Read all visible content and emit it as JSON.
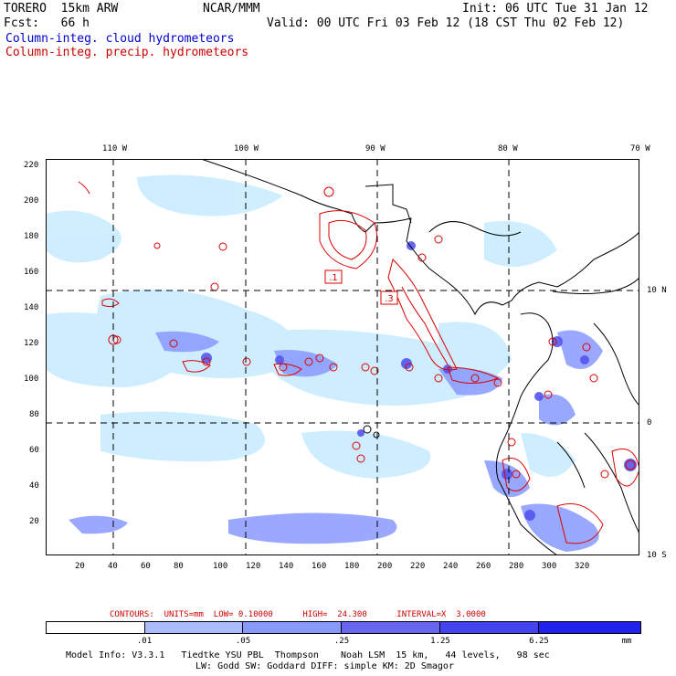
{
  "header": {
    "title_left": "TORERO  15km ARW",
    "org": "NCAR/MMM",
    "init": "Init: 06 UTC Tue 31 Jan 12",
    "fcst": "Fcst:   66 h",
    "valid": "Valid: 00 UTC Fri 03 Feb 12 (18 CST Thu 02 Feb 12)",
    "legend_cloud": "Column-integ. cloud hydrometeors",
    "legend_precip": "Column-integ. precip. hydrometeors"
  },
  "map": {
    "top_lon_labels": [
      "110 W",
      "100 W",
      "90 W",
      "80 W",
      "70 W"
    ],
    "right_lat_labels": [
      "10 N",
      "0",
      "10 S"
    ],
    "left_y_ticks": [
      "220",
      "200",
      "180",
      "160",
      "140",
      "120",
      "100",
      "80",
      "60",
      "40",
      "20"
    ],
    "bottom_x_ticks": [
      "20",
      "40",
      "60",
      "80",
      "100",
      "120",
      "140",
      "160",
      "180",
      "200",
      "220",
      "240",
      "260",
      "280",
      "300",
      "320"
    ],
    "boxed_labels": [
      ".1",
      ".3"
    ],
    "colors": {
      "coast": "#000000",
      "precip": "#dd0000",
      "cloud_light": "#cceeff",
      "cloud_mid": "#8899ff",
      "cloud_dark": "#5555ee"
    }
  },
  "contours_text": "CONTOURS:  UNITS=mm  LOW= 0.10000      HIGH=  24.300      INTERVAL=X  3.0000",
  "colorbar": {
    "colors": [
      "#ffffff",
      "#cceeff",
      "#aabbff",
      "#8899ff",
      "#6666ee",
      "#4444ee",
      "#2222ee"
    ],
    "labels": [
      ".01",
      ".05",
      ".25",
      "1.25",
      "6.25"
    ],
    "unit": "mm"
  },
  "footer": {
    "line1": "Model Info: V3.3.1   Tiedtke YSU PBL  Thompson    Noah LSM  15 km,   44 levels,   98 sec",
    "line2": "LW: Godd SW: Goddard DIFF: simple KM: 2D Smagor"
  }
}
